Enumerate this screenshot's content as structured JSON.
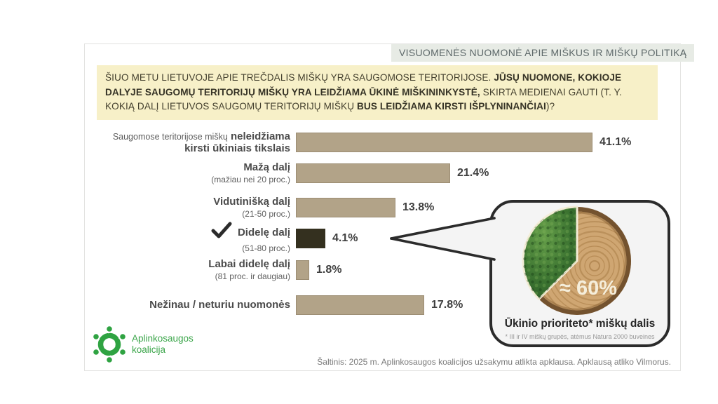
{
  "header": {
    "title": "VISUOMENĖS NUOMONĖ APIE MIŠKUS IR MIŠKŲ POLITIKĄ"
  },
  "question": {
    "segments": [
      {
        "text": "ŠIUO METU LIETUVOJE APIE TREČDALIS MIŠKŲ YRA SAUGOMOSE TERITORIJOSE. ",
        "bold": false
      },
      {
        "text": "JŪSŲ NUOMONE, KOKIOJE DALYJE SAUGOMŲ TERITORIJŲ MIŠKŲ YRA LEIDŽIAMA ŪKINĖ MIŠKININKYSTĖ,",
        "bold": true
      },
      {
        "text": " SKIRTA MEDIENAI GAUTI (T. Y. KOKIĄ DALĮ LIETUVOS SAUGOMŲ TERITORIJŲ MIŠKŲ ",
        "bold": false
      },
      {
        "text": "BUS LEIDŽIAMA KIRSTI IŠPLYNINANČIAI",
        "bold": true
      },
      {
        "text": ")?",
        "bold": false
      }
    ]
  },
  "rows": [
    {
      "label_small": "Saugomose teritorijose miškų",
      "label_bold_1": "neleidžiama",
      "label_bold_2": "kirsti ūkiniais tikslais",
      "sub": "",
      "value": "41.1%"
    },
    {
      "label": "Mažą dalį",
      "sub": "(mažiau nei 20 proc.)",
      "value": "21.4%"
    },
    {
      "label": "Vidutinišką dalį",
      "sub": "(21-50 proc.)",
      "value": "13.8%"
    },
    {
      "label": "Didelę dalį",
      "sub": "(51-80 proc.)",
      "value": "4.1%"
    },
    {
      "label": "Labai didelę dalį",
      "sub": "(81 proc. ir daugiau)",
      "value": "1.8%"
    },
    {
      "label": "Nežinau / neturiu nuomonės",
      "sub": "",
      "value": "17.8%"
    }
  ],
  "chart_data": {
    "type": "bar",
    "orientation": "horizontal",
    "title": "Jūsų nuomone, kokioje dalyje saugomų teritorijų miškų yra leidžiama ūkinė miškininkystė?",
    "categories": [
      "Saugomose teritorijose miškų neleidžiama kirsti ūkiniais tikslais",
      "Mažą dalį (mažiau nei 20 proc.)",
      "Vidutinišką dalį (21-50 proc.)",
      "Didelę dalį (51-80 proc.)",
      "Labai didelę dalį (81 proc. ir daugiau)",
      "Nežinau / neturiu nuomonės"
    ],
    "values": [
      41.1,
      21.4,
      13.8,
      4.1,
      1.8,
      17.8
    ],
    "value_labels": [
      "41.1%",
      "21.4%",
      "13.8%",
      "4.1%",
      "1.8%",
      "17.8%"
    ],
    "unit": "%",
    "xlim": [
      0,
      45
    ],
    "grid": false,
    "highlighted_category_index": 3,
    "bar_color": "#b2a388",
    "highlight_bar_color": "#34301f",
    "annotation_pie": {
      "wood_share_pct": 60,
      "forest_share_pct": 40,
      "label": "≈ 60%"
    }
  },
  "callout": {
    "approx_label": "≈ 60%",
    "caption": "Ūkinio prioriteto* miškų dalis",
    "footnote": "* III ir IV miškų grupės, atėmus Natura 2000 buveines"
  },
  "footer": {
    "logo_line1": "Aplinkosaugos",
    "logo_line2": "koalicija",
    "source": "Šaltinis: 2025 m. Aplinkosaugos koalicijos užsakymu atlikta apklausa. Apklausą atliko Vilmorus."
  },
  "colors": {
    "question_bg": "#f7f0c8",
    "bar": "#b2a388",
    "bar_dark": "#34301f",
    "title_chip_bg": "#e7ebe5",
    "bubble_bg": "#f4f4f4",
    "bubble_border": "#2b2b2b",
    "logo_green": "#2fa342",
    "pie_label_cream": "#f5eedb"
  }
}
